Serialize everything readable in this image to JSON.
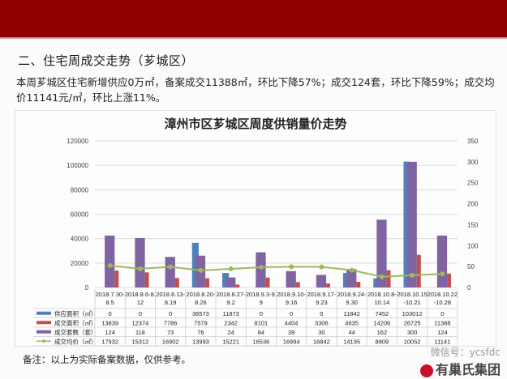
{
  "header": {
    "bar_color": "#8f0000"
  },
  "section_title": "二、住宅周成交走势（芗城区）",
  "summary": "本周芗城区住宅新增供应0万㎡，备案成交11388㎡，环比下降57%；成交124套，环比下降59%；成交均价11141元/㎡，环比上涨11%。",
  "note": "备注：以上为实际备案数据，仅供参考。",
  "watermark": {
    "wechat": "微信号：ycsfdc",
    "brand": "有巢氏集团"
  },
  "chart_data": {
    "type": "bar",
    "title": "漳州市区芗城区周度供销量价走势",
    "categories": [
      "2018.7.30-8.5",
      "2018.8.6-8.12",
      "2018.8.13-8.19",
      "2018.8.20-8.26",
      "2018.8.27-9.2",
      "2018.9.3-9.9",
      "2018.9.10-9.16",
      "2018.9.17-9.23",
      "2018.9.24-9.30",
      "2018.10.8-10.14",
      "2018.10.15-10.21",
      "2018.10.22-10.28"
    ],
    "category_lines": [
      [
        "2018.7.30-",
        "8.5"
      ],
      [
        "2018.8.6-8.",
        "12"
      ],
      [
        "2018.8.13-",
        "8.19"
      ],
      [
        "2018.8.20-",
        "8.26"
      ],
      [
        "2018.8.27-",
        "9.2"
      ],
      [
        "2018.9.3-9.",
        "9"
      ],
      [
        "2018.9.10-",
        "9.16"
      ],
      [
        "2018.9.17-",
        "9.23"
      ],
      [
        "2018.9.24-",
        "9.30"
      ],
      [
        "2018.10.8-",
        "10.14"
      ],
      [
        "2018.10.15",
        "-10.21"
      ],
      [
        "2018.10.22",
        "-10.28"
      ]
    ],
    "series": [
      {
        "name": "供应面积（㎡）",
        "type": "bar",
        "axis": "left",
        "color": "#4f81bd",
        "values": [
          0,
          0,
          0,
          36573,
          11873,
          0,
          0,
          0,
          11842,
          7452,
          103012,
          0
        ]
      },
      {
        "name": "成交面积（㎡）",
        "type": "bar",
        "axis": "left",
        "color": "#c0504d",
        "values": [
          13839,
          12374,
          7786,
          7579,
          2342,
          8101,
          4404,
          3306,
          4635,
          14206,
          26725,
          11388
        ]
      },
      {
        "name": "成交套数（套）",
        "type": "bar",
        "axis": "right",
        "color": "#8064a2",
        "values": [
          124,
          118,
          73,
          76,
          24,
          84,
          39,
          30,
          44,
          162,
          300,
          124
        ]
      },
      {
        "name": "成交均价（㎡）",
        "type": "line",
        "axis": "left",
        "color": "#9bbb59",
        "values": [
          17932,
          15312,
          16902,
          13993,
          15221,
          16536,
          16994,
          16842,
          14195,
          8809,
          10052,
          11141
        ]
      }
    ],
    "y_left": {
      "ticks": [
        0,
        20000,
        40000,
        60000,
        80000,
        100000,
        120000
      ],
      "lim": [
        0,
        120000
      ]
    },
    "y_right": {
      "ticks": [
        0,
        50,
        100,
        150,
        200,
        250,
        300,
        350
      ],
      "lim": [
        0,
        350
      ]
    },
    "grid": true,
    "legend_position": "data-table"
  }
}
